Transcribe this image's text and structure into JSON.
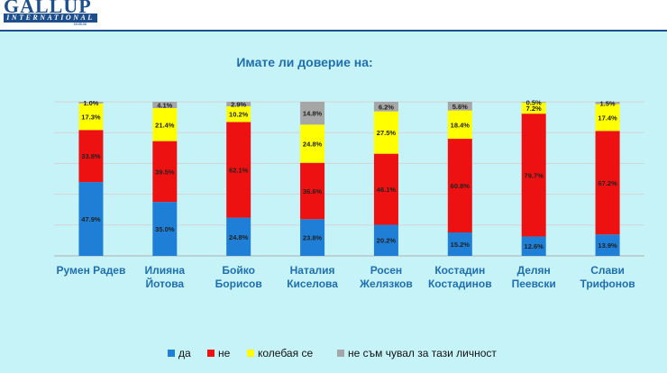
{
  "logo": {
    "main": "GALLUP",
    "bar": "INTERNATIONAL",
    "sub": "Balkan"
  },
  "colors": {
    "da": "#1f7fd6",
    "ne": "#ee1111",
    "kolebaya": "#ffff00",
    "ne_chuval": "#a6a6a6"
  },
  "chart_data": {
    "type": "bar",
    "stacked": true,
    "title": "Имате  ли доверие на:",
    "categories": [
      "Румен Радев",
      "Илияна Йотова",
      "Бойко Борисов",
      "Наталия Киселова",
      "Росен Желязков",
      "Костадин Костадинов",
      "Делян Пеевски",
      "Слави Трифонов"
    ],
    "category_lines": [
      [
        "Румен Радев"
      ],
      [
        "Илияна",
        "Йотова"
      ],
      [
        "Бойко",
        "Борисов"
      ],
      [
        "Наталия",
        "Киселова"
      ],
      [
        "Росен",
        "Желязков"
      ],
      [
        "Костадин",
        "Костадинов"
      ],
      [
        "Делян",
        "Пеевски"
      ],
      [
        "Слави",
        "Трифонов"
      ]
    ],
    "series": [
      {
        "name": "да",
        "values": [
          47.9,
          35.0,
          24.8,
          23.8,
          20.2,
          15.2,
          12.6,
          13.9
        ],
        "labels": [
          "47.9%",
          "35.0%",
          "24.8%",
          "23.8%",
          "20.2%",
          "15.2%",
          "12.6%",
          "13.9%"
        ]
      },
      {
        "name": "не",
        "values": [
          33.8,
          39.5,
          62.1,
          36.6,
          46.1,
          60.8,
          79.7,
          67.2
        ],
        "labels": [
          "33.8%",
          "39.5%",
          "62.1%",
          "36.6%",
          "46.1%",
          "60.8%",
          "79.7%",
          "67.2%"
        ]
      },
      {
        "name": "колебая се",
        "values": [
          17.3,
          21.4,
          10.2,
          24.8,
          27.5,
          18.4,
          7.2,
          17.4
        ],
        "labels": [
          "17.3%",
          "21.4%",
          "10.2%",
          "24.8%",
          "27.5%",
          "18.4%",
          "7.2%",
          "17.4%"
        ]
      },
      {
        "name": "не съм чувал за тази личност",
        "values": [
          1.0,
          4.1,
          2.9,
          14.8,
          6.2,
          5.6,
          0.5,
          1.5
        ],
        "labels": [
          "1.0%",
          "4.1%",
          "2.9%",
          "14.8%",
          "6.2%",
          "5.6%",
          "0.5%",
          "1.5%"
        ]
      }
    ],
    "ylim": [
      0,
      100
    ],
    "grid": true,
    "legend_position": "bottom"
  }
}
